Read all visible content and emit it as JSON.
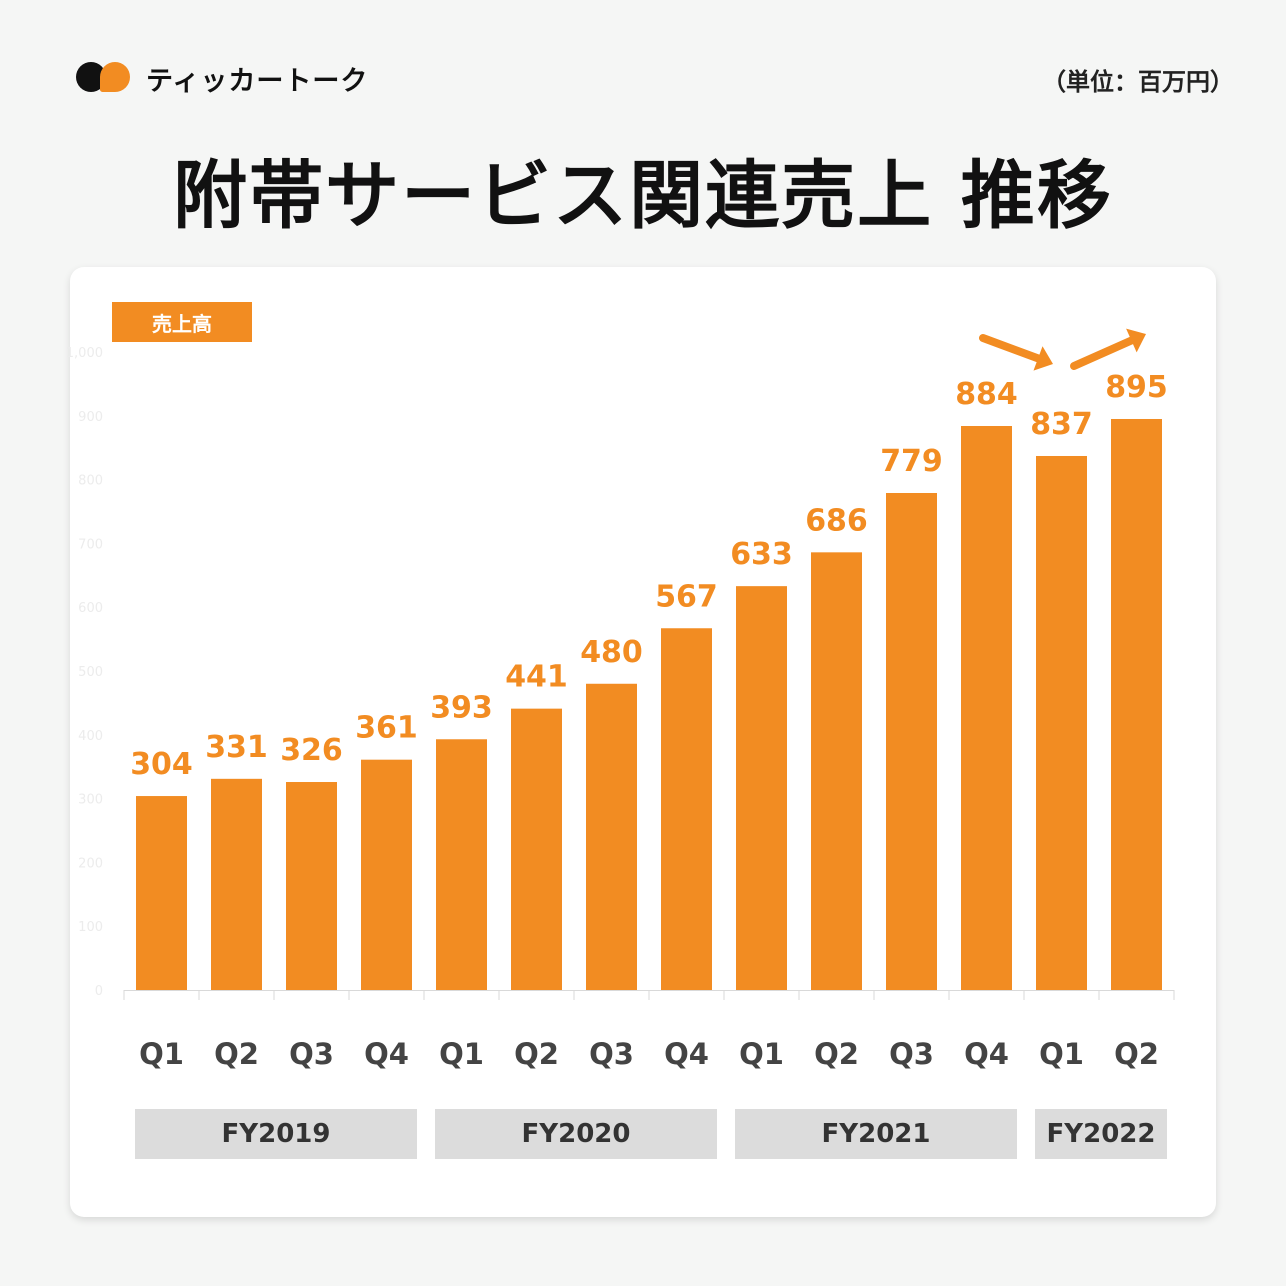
{
  "brand": {
    "name": "ティッカートーク",
    "mark_icon": "two-dots-logo-icon"
  },
  "unit_label": "（単位：百万円）",
  "title": "附帯サービス関連売上 推移",
  "colors": {
    "bar": "#f28c22",
    "label": "#f28c22",
    "fy_box": "#dcdcdc"
  },
  "chart_data": {
    "type": "bar",
    "legend": "売上高",
    "categories": [
      "Q1",
      "Q2",
      "Q3",
      "Q4",
      "Q1",
      "Q2",
      "Q3",
      "Q4",
      "Q1",
      "Q2",
      "Q3",
      "Q4",
      "Q1",
      "Q2"
    ],
    "values": [
      304,
      331,
      326,
      361,
      393,
      441,
      480,
      567,
      633,
      686,
      779,
      884,
      837,
      895
    ],
    "ylim": [
      0,
      1000
    ],
    "yticks": [
      0,
      100,
      200,
      300,
      400,
      500,
      600,
      700,
      800,
      900,
      "1,000"
    ],
    "fiscal_years": [
      {
        "label": "FY2019",
        "quarters": 4
      },
      {
        "label": "FY2020",
        "quarters": 4
      },
      {
        "label": "FY2021",
        "quarters": 4
      },
      {
        "label": "FY2022",
        "quarters": 2
      }
    ],
    "annotations": [
      "arrow-down-icon",
      "arrow-up-icon"
    ]
  }
}
